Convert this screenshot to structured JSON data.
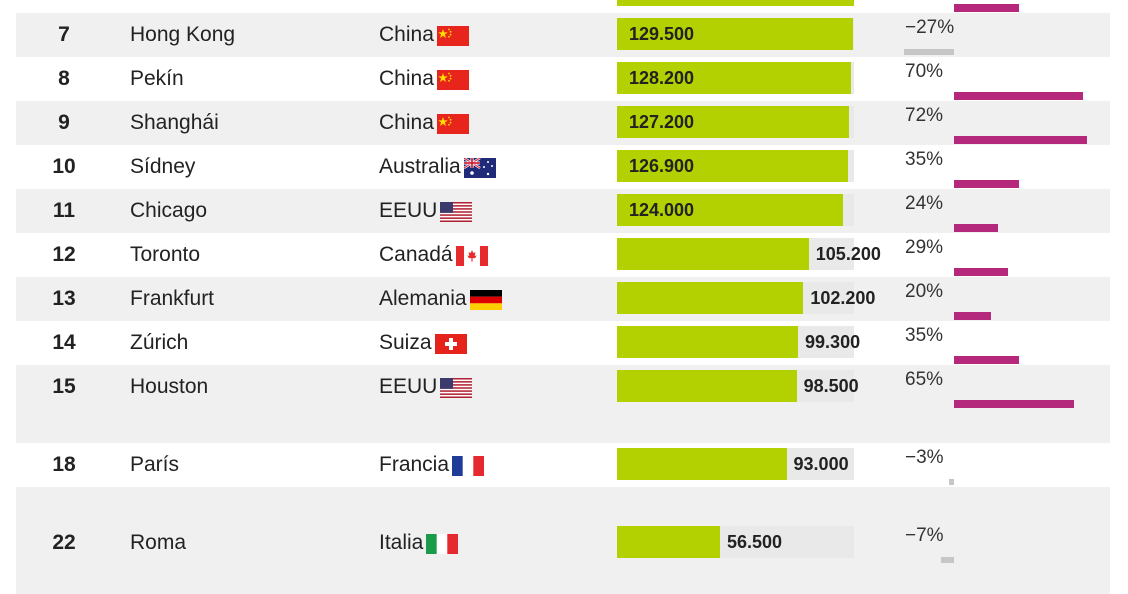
{
  "colors": {
    "value_bar": "#b3d100",
    "bar_track": "#e9e9e9",
    "change_positive": "#b5297c",
    "change_negative": "#c6c6c6",
    "row_shade": "#f0f0f0"
  },
  "chart_data": {
    "type": "table",
    "columns": [
      "rank",
      "city",
      "country",
      "value",
      "change"
    ],
    "value_max": 130000,
    "change_max_pct": 72,
    "rows": [
      {
        "rank": "",
        "city": "",
        "country": "",
        "flag": "",
        "value": 220000,
        "value_label": "",
        "change_pct": 35,
        "change_label": ""
      },
      {
        "rank": "7",
        "city": "Hong Kong",
        "country": "China",
        "flag": "china-flag-icon",
        "value": 129500,
        "value_label": "129.500",
        "change_pct": -27,
        "change_label": "−27%"
      },
      {
        "rank": "8",
        "city": "Pekín",
        "country": "China",
        "flag": "china-flag-icon",
        "value": 128200,
        "value_label": "128.200",
        "change_pct": 70,
        "change_label": "70%"
      },
      {
        "rank": "9",
        "city": "Shanghái",
        "country": "China",
        "flag": "china-flag-icon",
        "value": 127200,
        "value_label": "127.200",
        "change_pct": 72,
        "change_label": "72%"
      },
      {
        "rank": "10",
        "city": "Sídney",
        "country": "Australia",
        "flag": "australia-flag-icon",
        "value": 126900,
        "value_label": "126.900",
        "change_pct": 35,
        "change_label": "35%"
      },
      {
        "rank": "11",
        "city": "Chicago",
        "country": "EEUU",
        "flag": "usa-flag-icon",
        "value": 124000,
        "value_label": "124.000",
        "change_pct": 24,
        "change_label": "24%"
      },
      {
        "rank": "12",
        "city": "Toronto",
        "country": "Canadá",
        "flag": "canada-flag-icon",
        "value": 105200,
        "value_label": "105.200",
        "change_pct": 29,
        "change_label": "29%"
      },
      {
        "rank": "13",
        "city": "Frankfurt",
        "country": "Alemania",
        "flag": "germany-flag-icon",
        "value": 102200,
        "value_label": "102.200",
        "change_pct": 20,
        "change_label": "20%"
      },
      {
        "rank": "14",
        "city": "Zúrich",
        "country": "Suiza",
        "flag": "switzerland-flag-icon",
        "value": 99300,
        "value_label": "99.300",
        "change_pct": 35,
        "change_label": "35%"
      },
      {
        "rank": "15",
        "city": "Houston",
        "country": "EEUU",
        "flag": "usa-flag-icon",
        "value": 98500,
        "value_label": "98.500",
        "change_pct": 65,
        "change_label": "65%"
      },
      {
        "spacer": true
      },
      {
        "rank": "18",
        "city": "París",
        "country": "Francia",
        "flag": "france-flag-icon",
        "value": 93000,
        "value_label": "93.000",
        "change_pct": -3,
        "change_label": "−3%"
      },
      {
        "spacer": true
      },
      {
        "rank": "22",
        "city": "Roma",
        "country": "Italia",
        "flag": "italy-flag-icon",
        "value": 56500,
        "value_label": "56.500",
        "change_pct": -7,
        "change_label": "−7%"
      },
      {
        "spacer": true,
        "tail": true
      }
    ]
  }
}
